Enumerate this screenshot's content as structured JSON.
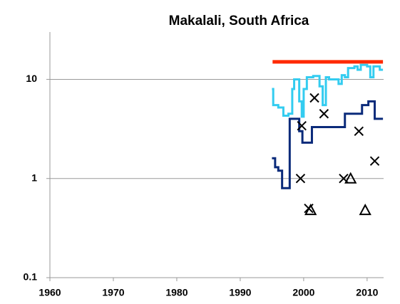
{
  "chart_data": {
    "type": "line",
    "title": "Makalali, South Africa",
    "xlim": [
      1960,
      2012.6
    ],
    "xticks": [
      1960,
      1970,
      1980,
      1990,
      2000,
      2010
    ],
    "ylim": [
      0.1,
      30
    ],
    "yticks": [
      0.1,
      1,
      10
    ],
    "log_y": true,
    "grid": true,
    "series": [
      {
        "name": "red",
        "color": "#ff2a00",
        "kind": "line",
        "width": 5,
        "x": [
          1995.1,
          2012.5
        ],
        "values": [
          15,
          15
        ]
      },
      {
        "name": "light",
        "color": "#33ccf0",
        "kind": "line",
        "width": 3,
        "x": [
          1995,
          1995.2,
          1996,
          1996.8,
          1997.6,
          1998.2,
          1998.5,
          1999,
          1999.3,
          1999.7,
          2000,
          2000.5,
          2001,
          2001.5,
          2002,
          2002.5,
          2003,
          2003.5,
          2004,
          2005,
          2005.5,
          2006,
          2006.5,
          2007,
          2008,
          2008.5,
          2009,
          2010,
          2010.5,
          2011,
          2012,
          2012.5
        ],
        "values": [
          8,
          5.5,
          5.2,
          4.3,
          4.5,
          8,
          10,
          10,
          6,
          4.2,
          8,
          10.5,
          10.5,
          10.8,
          10.8,
          8.5,
          5.5,
          10.5,
          10,
          10,
          9,
          11,
          10.5,
          13,
          13.5,
          12.5,
          14,
          13.5,
          10.5,
          13.5,
          12.5,
          12.5
        ]
      },
      {
        "name": "dark",
        "color": "#0a2a7a",
        "kind": "line",
        "width": 3,
        "x": [
          1995,
          1995.5,
          1996,
          1996.6,
          1997.6,
          1997.8,
          1999.1,
          1999.3,
          1999.8,
          2001.2,
          2001.3,
          2006.4,
          2006.5,
          2008.5,
          2009.2,
          2010.2,
          2011,
          2011.2,
          2012.5
        ],
        "values": [
          1.6,
          1.3,
          1.2,
          0.8,
          0.8,
          4,
          4,
          3,
          2.3,
          2.3,
          3.3,
          3.3,
          4.5,
          4.5,
          5.5,
          6,
          6,
          4,
          4
        ]
      },
      {
        "name": "cross",
        "color": "#000000",
        "kind": "cross",
        "x": [
          1999.5,
          1999.7,
          2001.7,
          2003.2,
          2000.8,
          2006.3,
          2008.7,
          2011.2
        ],
        "values": [
          1,
          3.4,
          6.5,
          4.5,
          0.5,
          1,
          3,
          1.5
        ]
      },
      {
        "name": "triangle",
        "color": "#000000",
        "kind": "triangle",
        "x": [
          2001.1,
          2007.4,
          2009.7
        ],
        "values": [
          0.48,
          1,
          0.48
        ]
      }
    ]
  }
}
